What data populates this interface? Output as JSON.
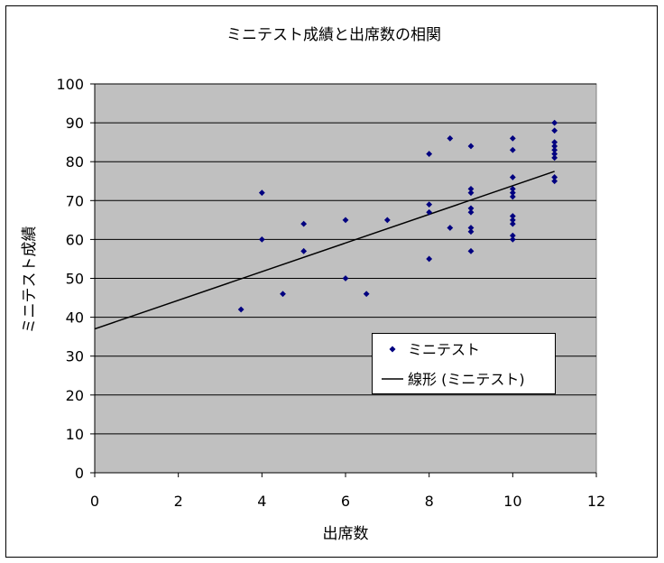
{
  "chart_data": {
    "type": "scatter",
    "title": "ミニテスト成績と出席数の相関",
    "xlabel": "出席数",
    "ylabel": "ミニテスト成績",
    "xlim": [
      0,
      12
    ],
    "ylim": [
      0,
      100
    ],
    "x_ticks": [
      "0",
      "2",
      "4",
      "6",
      "8",
      "10",
      "12"
    ],
    "y_ticks": [
      "0",
      "10",
      "20",
      "30",
      "40",
      "50",
      "60",
      "70",
      "80",
      "90",
      "100"
    ],
    "grid": "horizontal",
    "legend_position": "bottom-right",
    "colors": {
      "plot_background": "#c0c0c0",
      "marker": "#000080",
      "trendline": "#000000",
      "gridline": "#000000"
    },
    "series": [
      {
        "name": "ミニテスト",
        "marker": "diamond",
        "points": [
          [
            3.5,
            42
          ],
          [
            4,
            72
          ],
          [
            4,
            60
          ],
          [
            4.5,
            46
          ],
          [
            5,
            64
          ],
          [
            5,
            57
          ],
          [
            6,
            65
          ],
          [
            6,
            50
          ],
          [
            6.5,
            46
          ],
          [
            7,
            65
          ],
          [
            8,
            82
          ],
          [
            8,
            69
          ],
          [
            8,
            67
          ],
          [
            8,
            55
          ],
          [
            8.5,
            86
          ],
          [
            8.5,
            63
          ],
          [
            9,
            84
          ],
          [
            9,
            73
          ],
          [
            9,
            72
          ],
          [
            9,
            68
          ],
          [
            9,
            67
          ],
          [
            9,
            63
          ],
          [
            9,
            62
          ],
          [
            9,
            57
          ],
          [
            10,
            86
          ],
          [
            10,
            83
          ],
          [
            10,
            76
          ],
          [
            10,
            73
          ],
          [
            10,
            72
          ],
          [
            10,
            71
          ],
          [
            10,
            66
          ],
          [
            10,
            65
          ],
          [
            10,
            64
          ],
          [
            10,
            61
          ],
          [
            10,
            60
          ],
          [
            11,
            90
          ],
          [
            11,
            88
          ],
          [
            11,
            85
          ],
          [
            11,
            84
          ],
          [
            11,
            83
          ],
          [
            11,
            82
          ],
          [
            11,
            81
          ],
          [
            11,
            76
          ],
          [
            11,
            75
          ]
        ]
      }
    ],
    "trendline": {
      "name": "線形 (ミニテスト)",
      "type": "linear",
      "x": [
        0,
        11
      ],
      "y": [
        37,
        77.5
      ]
    }
  }
}
